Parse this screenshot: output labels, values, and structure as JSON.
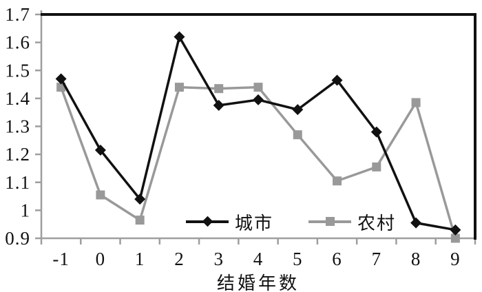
{
  "figure": {
    "background": "#ffffff"
  },
  "chart_data": {
    "type": "line",
    "title": "",
    "xlabel": "结婚年数",
    "ylabel": "",
    "x_categories": [
      "-1",
      "0",
      "1",
      "2",
      "3",
      "4",
      "5",
      "6",
      "7",
      "8",
      "9"
    ],
    "series": [
      {
        "id": "city",
        "name": "城市",
        "color": "#111111",
        "marker": "diamond",
        "values": [
          1.47,
          1.215,
          1.04,
          1.62,
          1.375,
          1.395,
          1.36,
          1.465,
          1.28,
          0.955,
          0.93
        ]
      },
      {
        "id": "rural",
        "name": "农村",
        "color": "#999999",
        "marker": "square",
        "values": [
          1.44,
          1.055,
          0.965,
          1.44,
          1.435,
          1.44,
          1.27,
          1.105,
          1.155,
          1.385,
          0.9
        ]
      }
    ],
    "ylim": [
      0.9,
      1.7
    ],
    "ytick_step": 0.1,
    "ytick_labels": [
      "0.9",
      "1",
      "1.1",
      "1.2",
      "1.3",
      "1.4",
      "1.5",
      "1.6",
      "1.7"
    ],
    "grid": false,
    "legend_position": "inside-bottom",
    "axis_color": "#9e9e9e",
    "border_color": "#111111"
  }
}
